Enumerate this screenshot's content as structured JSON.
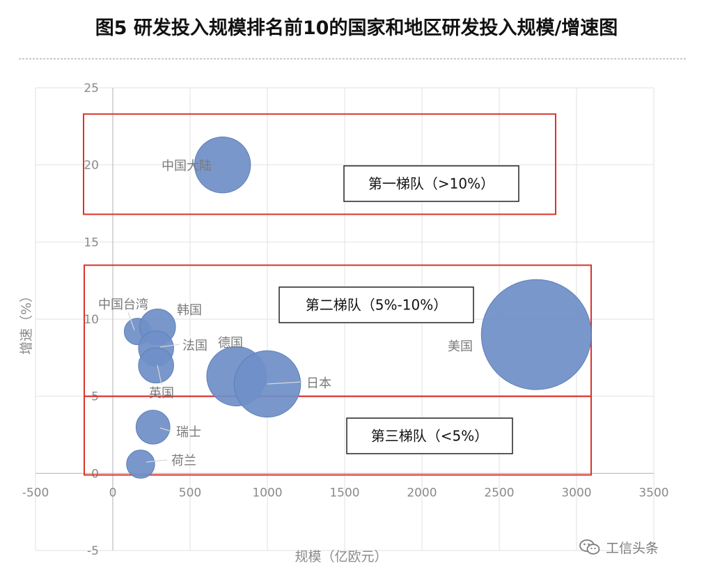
{
  "title": "图5 研发投入规模排名前10的国家和地区研发投入规模/增速图",
  "watermark": {
    "text": "工信头条",
    "icon": "wechat-logo-icon"
  },
  "chart_data": {
    "type": "bubble",
    "xlabel": "规模（亿欧元）",
    "ylabel": "增速（%）",
    "xlim": [
      -500,
      3500
    ],
    "ylim": [
      -5,
      25
    ],
    "xticks": [
      -500,
      0,
      500,
      1000,
      1500,
      2000,
      2500,
      3000,
      3500
    ],
    "yticks": [
      -5,
      0,
      5,
      10,
      15,
      20,
      25
    ],
    "grid": true,
    "bubble_color": "#6f8fc7",
    "series": [
      {
        "name": "中国大陆",
        "x": 710,
        "y": 20.0,
        "size": 710
      },
      {
        "name": "中国台湾",
        "x": 160,
        "y": 9.2,
        "size": 160
      },
      {
        "name": "韩国",
        "x": 290,
        "y": 9.5,
        "size": 290
      },
      {
        "name": "法国",
        "x": 280,
        "y": 8.1,
        "size": 280
      },
      {
        "name": "德国",
        "x": 800,
        "y": 6.3,
        "size": 800
      },
      {
        "name": "英国",
        "x": 280,
        "y": 7.0,
        "size": 280
      },
      {
        "name": "日本",
        "x": 1000,
        "y": 5.8,
        "size": 1000
      },
      {
        "name": "美国",
        "x": 2740,
        "y": 9.0,
        "size": 2740
      },
      {
        "name": "瑞士",
        "x": 260,
        "y": 3.0,
        "size": 260
      },
      {
        "name": "荷兰",
        "x": 180,
        "y": 0.6,
        "size": 180
      }
    ],
    "tier_color": "#d9342b",
    "tiers": [
      {
        "label": "第一梯队（>10%）",
        "y_range": [
          16.8,
          23.3
        ]
      },
      {
        "label": "第二梯队（5%-10%）",
        "y_range": [
          5.0,
          13.5
        ]
      },
      {
        "label": "第三梯队（<5%）",
        "y_range": [
          -0.1,
          5.0
        ]
      }
    ]
  }
}
